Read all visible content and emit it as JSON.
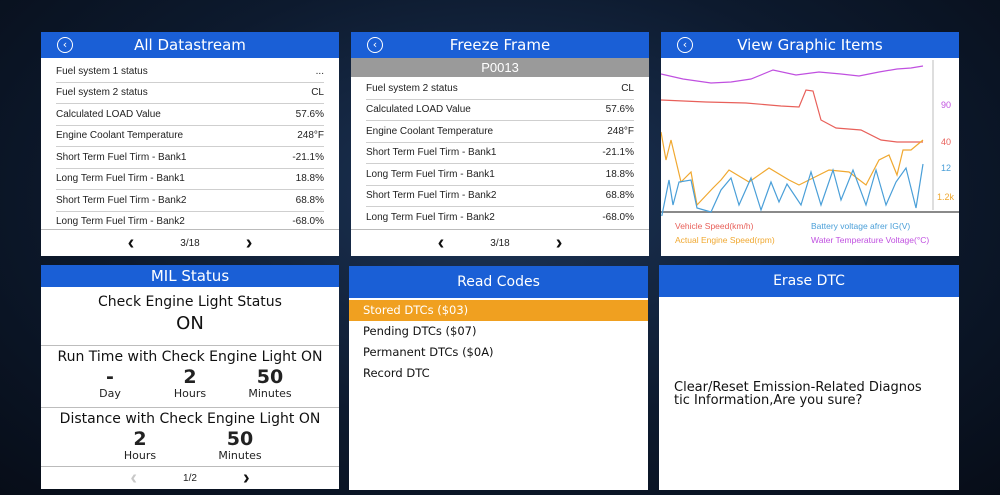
{
  "datastream": {
    "title": "All Datastream",
    "rows": [
      {
        "label": "Fuel system 1 status",
        "value": "..."
      },
      {
        "label": "Fuel system 2 status",
        "value": "CL"
      },
      {
        "label": "Calculated LOAD Value",
        "value": "57.6%"
      },
      {
        "label": "Engine Coolant Temperature",
        "value": "248°F"
      },
      {
        "label": "Short Term Fuel Tirm - Bank1",
        "value": "-21.1%"
      },
      {
        "label": "Long Term Fuel Tirm - Bank1",
        "value": "18.8%"
      },
      {
        "label": "Short Term Fuel Tirm - Bank2",
        "value": "68.8%"
      },
      {
        "label": "Long Term Fuel Tirm - Bank2",
        "value": "-68.0%"
      }
    ],
    "page": "3/18"
  },
  "freeze": {
    "title": "Freeze Frame",
    "code": "P0013",
    "rows": [
      {
        "label": "Fuel system 2 status",
        "value": "CL"
      },
      {
        "label": "Calculated LOAD Value",
        "value": "57.6%"
      },
      {
        "label": "Engine Coolant Temperature",
        "value": "248°F"
      },
      {
        "label": "Short Term Fuel Tirm - Bank1",
        "value": "-21.1%"
      },
      {
        "label": "Long Term Fuel Tirm - Bank1",
        "value": "18.8%"
      },
      {
        "label": "Short Term Fuel Tirm - Bank2",
        "value": "68.8%"
      },
      {
        "label": "Long Term Fuel Tirm - Bank2",
        "value": "-68.0%"
      }
    ],
    "page": "3/18"
  },
  "graphic": {
    "title": "View Graphic Items",
    "scale_labels": [
      "90",
      "40",
      "12",
      "1.2k"
    ],
    "legend": {
      "vehicle_speed": "Vehicle Speed(km/h)",
      "battery": "Battery voltage afrer IG(V)",
      "engine_speed": "Actual Engine Speed(rpm)",
      "water_temp": "Water Temperature Voltage(°C)"
    },
    "colors": {
      "vehicle_speed": "#e8605a",
      "battery": "#4a9fd8",
      "engine_speed": "#f0a830",
      "water_temp": "#c050e0"
    }
  },
  "mil": {
    "title": "MIL Status",
    "check_title": "Check Engine Light Status",
    "check_value": "ON",
    "run_title": "Run Time with Check Engine Light ON",
    "run": [
      {
        "value": "-",
        "unit": "Day"
      },
      {
        "value": "2",
        "unit": "Hours"
      },
      {
        "value": "50",
        "unit": "Minutes"
      }
    ],
    "dist_title": "Distance with Check Engine Light ON",
    "dist": [
      {
        "value": "2",
        "unit": "Hours"
      },
      {
        "value": "50",
        "unit": "Minutes"
      }
    ],
    "page": "1/2"
  },
  "codes": {
    "title": "Read Codes",
    "items": [
      "Stored DTCs  ($03)",
      "Pending DTCs  ($07)",
      "Permanent DTCs  ($0A)",
      "Record DTC"
    ]
  },
  "erase": {
    "title": "Erase DTC",
    "line1": "Clear/Reset Emission-Related Diagnos",
    "line2": "tic Information,Are you sure?"
  }
}
